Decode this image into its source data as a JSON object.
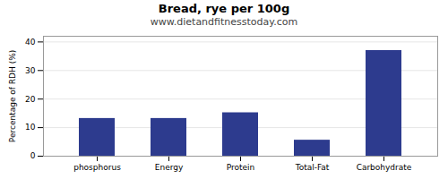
{
  "chart_data": {
    "type": "bar",
    "title": "Bread, rye per 100g",
    "subtitle": "www.dietandfitnesstoday.com",
    "categories": [
      "phosphorus",
      "Energy",
      "Protein",
      "Total-Fat",
      "Carbohydrate"
    ],
    "values": [
      13.2,
      13.2,
      15.2,
      5.6,
      37.0
    ],
    "color": "#2d3b8e",
    "ylabel": "Percentage of RDH (%)",
    "ylim": [
      0,
      42
    ],
    "yticks": [
      0,
      10,
      20,
      30,
      40
    ],
    "grid": true
  }
}
